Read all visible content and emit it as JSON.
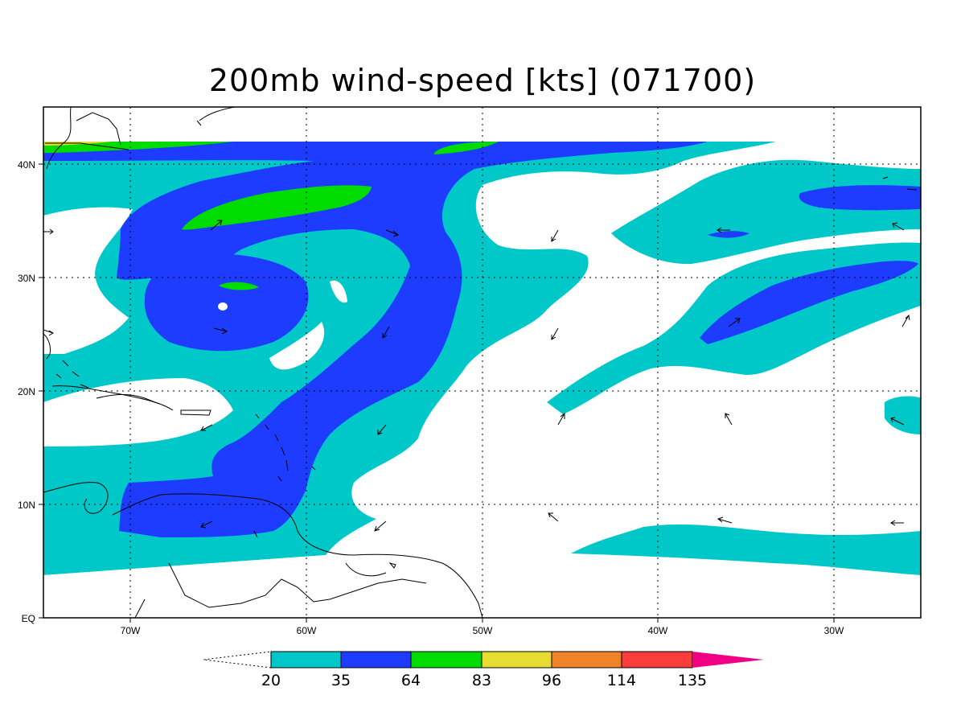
{
  "title": "200mb wind-speed [kts] (071700)",
  "colors": {
    "band_20_35": "#00c8c8",
    "band_35_64": "#1e3cff",
    "band_64_83": "#00dc00",
    "band_83_96": "#e6dc32",
    "band_96_114": "#f08228",
    "band_114_135": "#fa3c3c",
    "band_135_plus": "#f00082",
    "coast": "#000000",
    "grid": "#000000"
  },
  "x_ticks": [
    "70W",
    "60W",
    "50W",
    "40W",
    "30W"
  ],
  "y_ticks": [
    "EQ",
    "10N",
    "20N",
    "30N",
    "40N"
  ],
  "colorbar": {
    "labels": [
      "20",
      "35",
      "64",
      "83",
      "96",
      "114",
      "135"
    ]
  },
  "chart_data": {
    "type": "heatmap",
    "title": "200mb wind-speed [kts] (071700)",
    "x_range_deg_lon": [
      -75,
      -25
    ],
    "y_range_deg_lat": [
      0,
      45
    ],
    "levels": [
      20,
      35,
      64,
      83,
      96,
      114,
      135
    ],
    "grid": true
  }
}
